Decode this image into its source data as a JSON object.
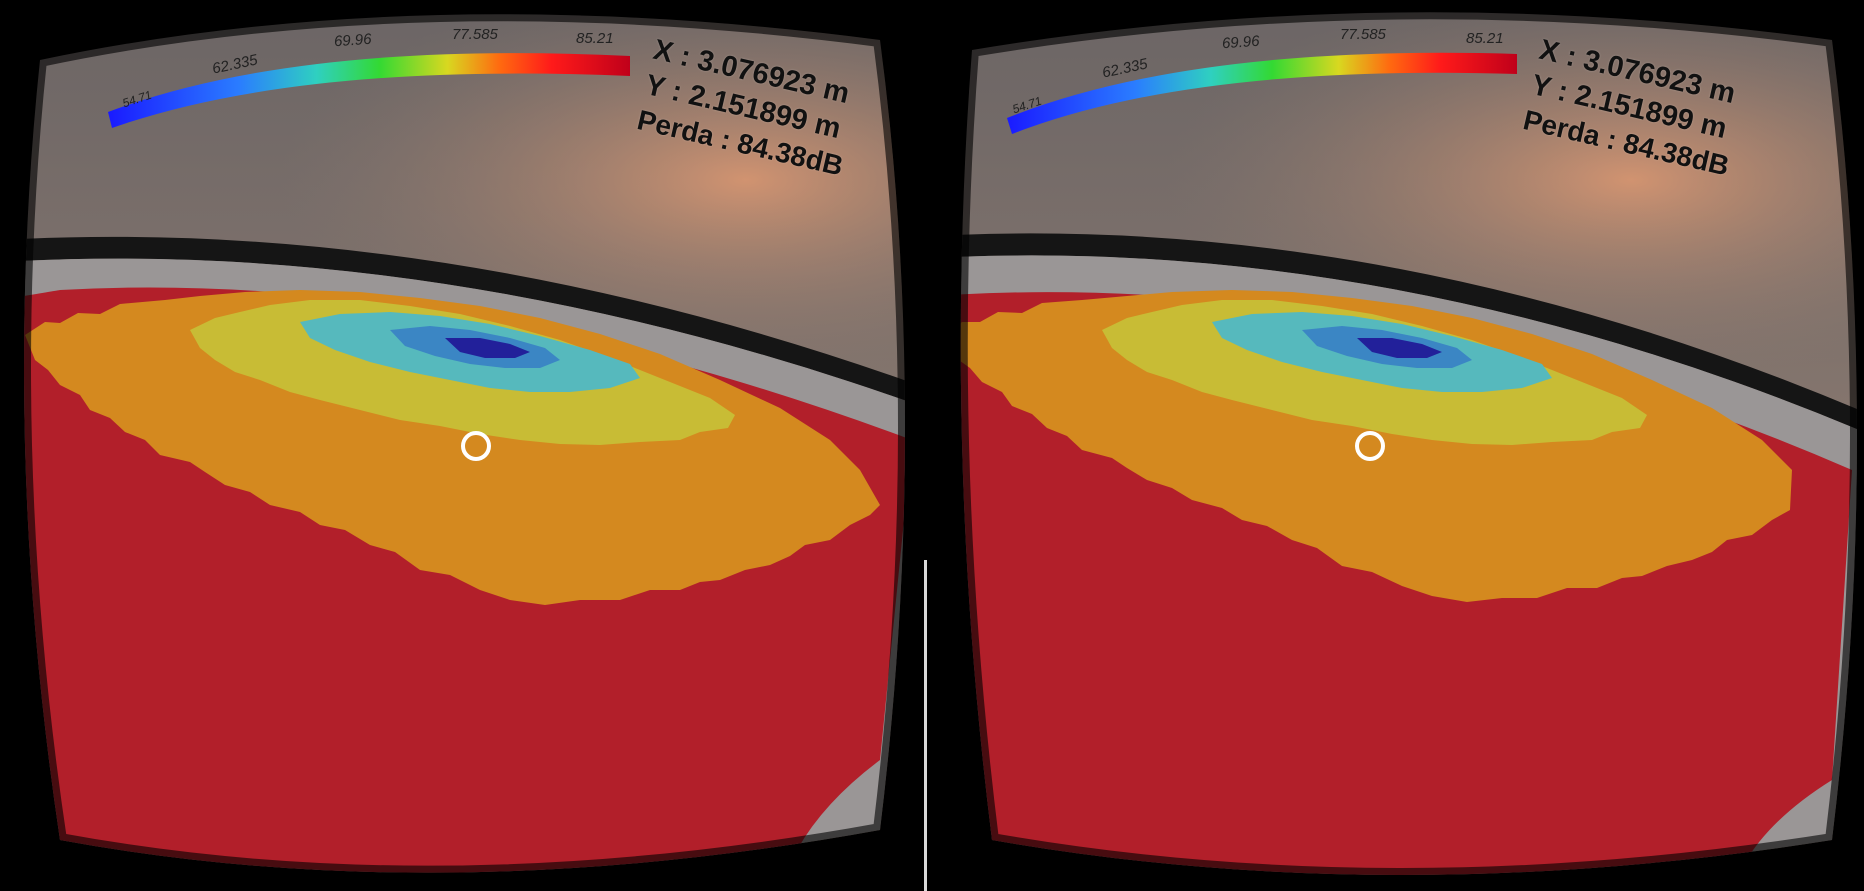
{
  "colorbar": {
    "ticks": [
      "54.71",
      "62.335",
      "69.96",
      "77.585",
      "85.21"
    ]
  },
  "readout": {
    "x": "X : 3.076923 m",
    "y": "Y : 2.151899 m",
    "perda": "Perda : 84.38dB"
  },
  "colors": {
    "sky_top": "#6e6a6a",
    "sky_glow": "#c7896a",
    "floor_red": "#b0202a",
    "orange": "#d4891f",
    "yellow": "#c9bd33",
    "cyan": "#4fb7c0",
    "blue": "#2f7fc1",
    "dark_blue": "#1d1a8e",
    "wall": "#9a9696"
  },
  "icons": {
    "reticle": "gaze-reticle-icon"
  }
}
